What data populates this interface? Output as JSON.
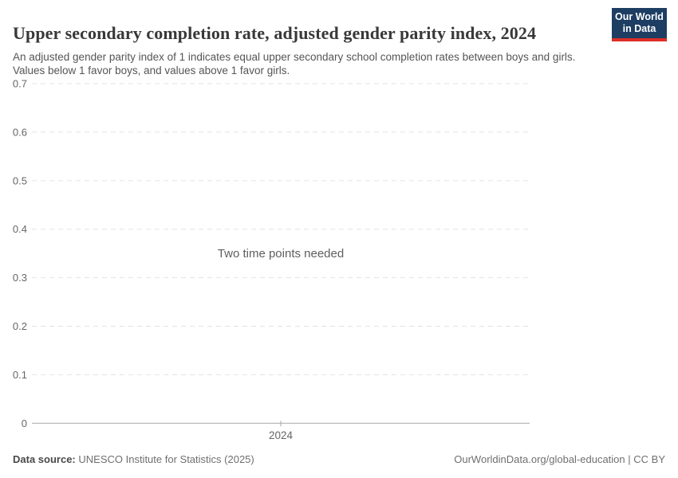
{
  "header": {
    "title": "Upper secondary completion rate, adjusted gender parity index, 2024",
    "subtitle": "An adjusted gender parity index of 1 indicates equal upper secondary school completion rates between boys and girls. Values below 1 favor boys, and values above 1 favor girls."
  },
  "logo": {
    "line1": "Our World",
    "line2": "in Data"
  },
  "colors": {
    "brand_navy": "#1d3d63",
    "brand_red": "#dc2e27",
    "gridline": "#e3e3e3",
    "axis_line": "#a7a7a7",
    "tick_label": "#666666",
    "message_text": "#5e5e5e"
  },
  "chart_data": {
    "type": "line",
    "title": "Upper secondary completion rate, adjusted gender parity index, 2024",
    "series": [],
    "empty_message": "Two time points needed",
    "xlabel": "",
    "ylabel": "",
    "ylim": [
      0,
      0.7
    ],
    "yticks": [
      0,
      0.1,
      0.2,
      0.3,
      0.4,
      0.5,
      0.6,
      0.7
    ],
    "xticks": [
      "2024"
    ],
    "grid": true,
    "legend": "none"
  },
  "footer": {
    "datasource_label": "Data source:",
    "datasource_value": "UNESCO Institute for Statistics (2025)",
    "attribution_link": "OurWorldinData.org/global-education",
    "attribution_license": " | CC BY"
  }
}
